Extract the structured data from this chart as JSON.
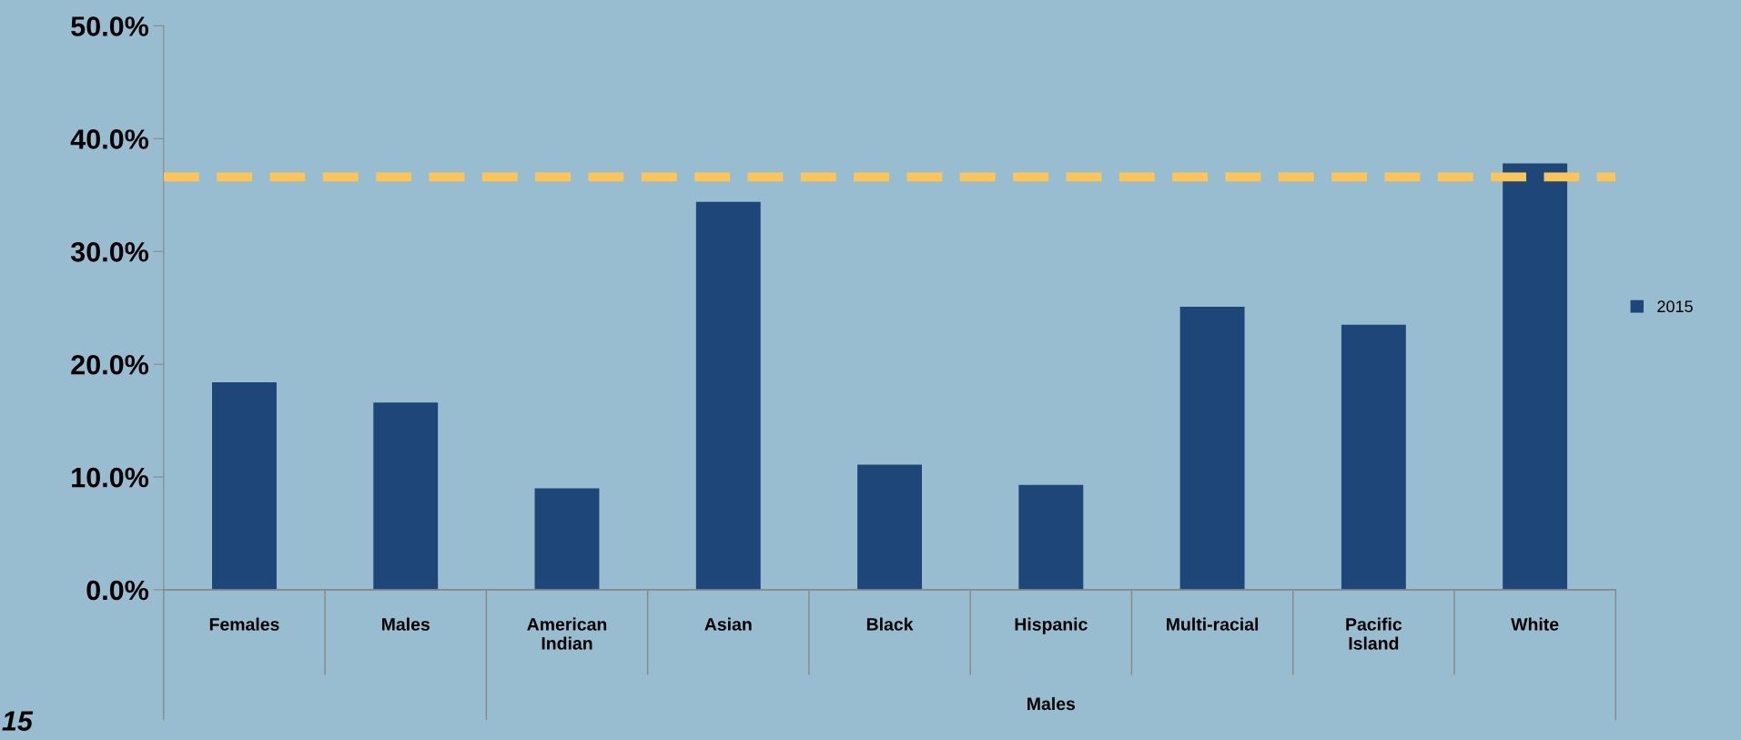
{
  "chart_data": {
    "type": "bar",
    "categories": [
      "Females",
      "Males",
      "American\nIndian",
      "Asian",
      "Black",
      "Hispanic",
      "Multi-racial",
      "Pacific\nIsland",
      "White"
    ],
    "series": [
      {
        "name": "2015",
        "color": "#1f4679",
        "values": [
          18.4,
          16.6,
          9.0,
          34.4,
          11.1,
          9.3,
          25.1,
          23.5,
          37.8
        ]
      }
    ],
    "ylim": [
      0,
      50
    ],
    "yticks": [
      {
        "value": 0,
        "label": "0.0%"
      },
      {
        "value": 10,
        "label": "10.0%"
      },
      {
        "value": 20,
        "label": "20.0%"
      },
      {
        "value": 30,
        "label": "30.0%"
      },
      {
        "value": 40,
        "label": "40.0%"
      },
      {
        "value": 50,
        "label": "50.0%"
      }
    ],
    "ref_lines": [
      {
        "axis": "y",
        "value": 36.6,
        "label": null,
        "color": "#fdc557",
        "line_style": "dashed"
      }
    ],
    "legend": "right",
    "grid": false,
    "annotations": [
      "Males",
      "15"
    ]
  }
}
